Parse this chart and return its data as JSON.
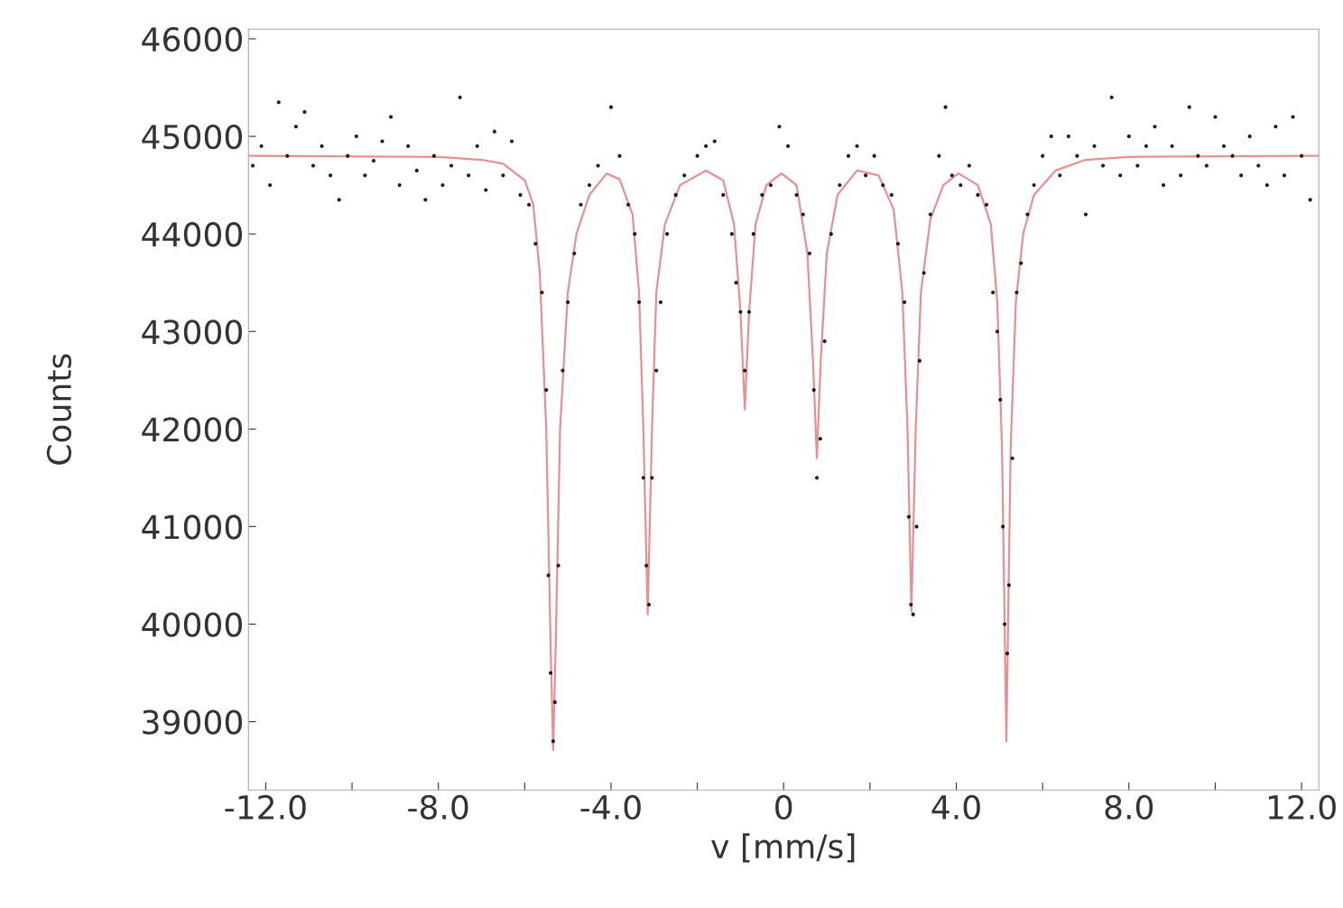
{
  "chart_data": {
    "type": "scatter",
    "xlabel": "v [mm/s]",
    "ylabel": "Counts",
    "xlim": [
      -12.4,
      12.4
    ],
    "ylim": [
      38300,
      46100
    ],
    "xticks": [
      {
        "value": -12,
        "label": "-12.0"
      },
      {
        "value": -10,
        "label": null
      },
      {
        "value": -8,
        "label": "-8.0"
      },
      {
        "value": -6,
        "label": null
      },
      {
        "value": -4,
        "label": "-4.0"
      },
      {
        "value": -2,
        "label": null
      },
      0,
      {
        "value": 2,
        "label": null
      },
      {
        "value": 4,
        "label": "4.0"
      },
      {
        "value": 6,
        "label": null
      },
      {
        "value": 8,
        "label": "8.0"
      },
      {
        "value": 10,
        "label": null
      },
      {
        "value": 12,
        "label": "12.0"
      }
    ],
    "yticks": [
      39000,
      40000,
      41000,
      42000,
      43000,
      44000,
      45000,
      46000
    ],
    "grid": false,
    "legend": false,
    "series": [
      {
        "marker": "circle",
        "color": "#1a1a1a",
        "x": [
          -12.3,
          -12.1,
          -11.9,
          -11.7,
          -11.5,
          -11.3,
          -11.1,
          -10.9,
          -10.7,
          -10.5,
          -10.3,
          -10.1,
          -9.9,
          -9.7,
          -9.5,
          -9.3,
          -9.1,
          -8.9,
          -8.7,
          -8.5,
          -8.3,
          -8.1,
          -7.9,
          -7.7,
          -7.5,
          -7.3,
          -7.1,
          -6.9,
          -6.7,
          -6.5,
          -6.3,
          -6.1,
          -5.9,
          -5.75,
          -5.6,
          -5.5,
          -5.45,
          -5.4,
          -5.34,
          -5.3,
          -5.22,
          -5.12,
          -5.0,
          -4.85,
          -4.7,
          -4.5,
          -4.3,
          -4.0,
          -3.8,
          -3.6,
          -3.45,
          -3.35,
          -3.25,
          -3.18,
          -3.12,
          -3.05,
          -2.95,
          -2.85,
          -2.7,
          -2.5,
          -2.3,
          -2.0,
          -1.8,
          -1.6,
          -1.4,
          -1.2,
          -1.1,
          -1.0,
          -0.9,
          -0.8,
          -0.7,
          -0.5,
          -0.3,
          -0.1,
          0.1,
          0.3,
          0.45,
          0.6,
          0.7,
          0.77,
          0.85,
          0.95,
          1.1,
          1.3,
          1.5,
          1.7,
          1.9,
          2.1,
          2.3,
          2.5,
          2.65,
          2.8,
          2.9,
          2.95,
          3.0,
          3.08,
          3.15,
          3.25,
          3.4,
          3.6,
          3.75,
          3.9,
          4.1,
          4.3,
          4.5,
          4.7,
          4.85,
          4.95,
          5.02,
          5.08,
          5.12,
          5.18,
          5.22,
          5.3,
          5.4,
          5.5,
          5.65,
          5.8,
          6.0,
          6.2,
          6.4,
          6.6,
          6.8,
          7.0,
          7.2,
          7.4,
          7.6,
          7.8,
          8.0,
          8.2,
          8.4,
          8.6,
          8.8,
          9.0,
          9.2,
          9.4,
          9.6,
          9.8,
          10.0,
          10.2,
          10.4,
          10.6,
          10.8,
          11.0,
          11.2,
          11.4,
          11.6,
          11.8,
          12.0,
          12.2
        ],
        "values": [
          44700,
          44900,
          44500,
          45350,
          44800,
          45100,
          45250,
          44700,
          44900,
          44600,
          44350,
          44800,
          45000,
          44600,
          44750,
          44950,
          45200,
          44500,
          44900,
          44650,
          44350,
          44800,
          44500,
          44700,
          45400,
          44600,
          44900,
          44450,
          45050,
          44600,
          44950,
          44400,
          44300,
          43900,
          43400,
          42400,
          40500,
          39500,
          38800,
          39200,
          40600,
          42600,
          43300,
          43800,
          44300,
          44500,
          44700,
          45300,
          44800,
          44300,
          44000,
          43300,
          41500,
          40600,
          40200,
          41500,
          42600,
          43300,
          44000,
          44400,
          44600,
          44800,
          44900,
          44950,
          44400,
          44000,
          43500,
          43200,
          42600,
          43200,
          44000,
          44400,
          44500,
          45100,
          44900,
          44400,
          44200,
          43800,
          42400,
          41500,
          41900,
          42900,
          44000,
          44500,
          44800,
          44900,
          44600,
          44800,
          44500,
          44400,
          43900,
          43300,
          41100,
          40200,
          40100,
          41000,
          42700,
          43600,
          44200,
          44800,
          45300,
          44600,
          44500,
          44700,
          44400,
          44300,
          43400,
          43000,
          42300,
          41000,
          40000,
          39700,
          40400,
          41700,
          43400,
          43700,
          44200,
          44500,
          44800,
          45000,
          44600,
          45000,
          44800,
          44200,
          44900,
          44700,
          45400,
          44600,
          45000,
          44700,
          44900,
          45100,
          44500,
          44900,
          44600,
          45300,
          44800,
          44700,
          45200,
          44900,
          44800,
          44600,
          45000,
          44700,
          44500,
          45100,
          44600,
          45200,
          44800,
          44350
        ]
      },
      {
        "type": "line",
        "color": "#e89090",
        "x": [
          -12.4,
          -8,
          -7,
          -6.5,
          -6.0,
          -5.8,
          -5.65,
          -5.5,
          -5.4,
          -5.34,
          -5.28,
          -5.18,
          -5.0,
          -4.8,
          -4.5,
          -4.1,
          -3.8,
          -3.5,
          -3.35,
          -3.25,
          -3.15,
          -3.05,
          -2.95,
          -2.75,
          -2.4,
          -1.8,
          -1.4,
          -1.15,
          -1.0,
          -0.9,
          -0.8,
          -0.65,
          -0.4,
          -0.05,
          0.3,
          0.55,
          0.68,
          0.77,
          0.86,
          1.0,
          1.25,
          1.7,
          2.2,
          2.55,
          2.75,
          2.87,
          2.96,
          3.06,
          3.18,
          3.4,
          3.7,
          4.05,
          4.5,
          4.8,
          4.95,
          5.06,
          5.16,
          5.26,
          5.38,
          5.55,
          5.8,
          6.3,
          7,
          8,
          12.4
        ],
        "values": [
          44800,
          44790,
          44760,
          44720,
          44550,
          44300,
          43600,
          42000,
          39800,
          38710,
          39800,
          42000,
          43400,
          44000,
          44400,
          44620,
          44560,
          44200,
          43400,
          42000,
          40100,
          42000,
          43400,
          44100,
          44500,
          44650,
          44550,
          44100,
          43200,
          42200,
          43200,
          44100,
          44500,
          44620,
          44500,
          43800,
          42700,
          41700,
          42700,
          43800,
          44400,
          44650,
          44600,
          44250,
          43400,
          42000,
          40130,
          42000,
          43400,
          44150,
          44500,
          44620,
          44500,
          44100,
          43300,
          41800,
          38800,
          41800,
          43300,
          44000,
          44400,
          44650,
          44760,
          44790,
          44800
        ]
      }
    ]
  }
}
